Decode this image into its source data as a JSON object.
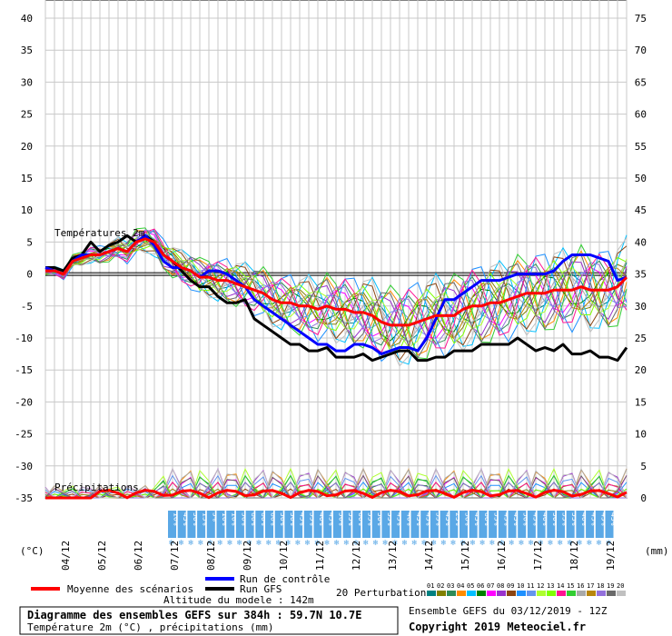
{
  "chart_data": {
    "type": "line",
    "title": "Diagramme des ensembles GEFS sur 384h : 59.7N 10.7E",
    "subtitle": "Température 2m (°C) , précipitations (mm)",
    "left_unit": "(°C)",
    "right_unit": "(mm)",
    "section_temp_label": "Températures 2m",
    "section_precip_label": "Précipitations",
    "left_ticks": [
      40,
      35,
      30,
      25,
      20,
      15,
      10,
      5,
      0,
      -5,
      -10,
      -15,
      -20,
      -25,
      -30,
      -35
    ],
    "right_ticks": [
      75,
      70,
      65,
      60,
      55,
      50,
      45,
      40,
      35,
      30,
      25,
      20,
      15,
      10,
      5,
      0
    ],
    "ylim": [
      -35,
      40
    ],
    "xlim": [
      0,
      64
    ],
    "dates": [
      "04/12",
      "05/12",
      "06/12",
      "07/12",
      "08/12",
      "09/12",
      "10/12",
      "11/12",
      "12/12",
      "13/12",
      "14/12",
      "15/12",
      "16/12",
      "17/12",
      "18/12",
      "19/12"
    ],
    "snow_percent": [
      "10%",
      "45%",
      "50%",
      "15%",
      "5%",
      "10%",
      "10%",
      "50%",
      "60%",
      "60%",
      "60%",
      "50%",
      "50%",
      "45%",
      "35%",
      "40%",
      "45%",
      "50%",
      "55%",
      "60%",
      "55%",
      "50%",
      "55%",
      "45%",
      "40%",
      "45%",
      "45%",
      "35%",
      "45%",
      "25%",
      "30%",
      "45%",
      "60%",
      "55%",
      "45%",
      "45%",
      "50%",
      "45%",
      "40%",
      "50%",
      "35%",
      "55%",
      "40%",
      "45%",
      "45%",
      "45%"
    ],
    "series": [
      {
        "name": "Moyenne des scénarios",
        "color": "#ff0000",
        "width": 3,
        "x": [
          0,
          1,
          2,
          3,
          4,
          5,
          6,
          7,
          8,
          9,
          10,
          11,
          12,
          13,
          14,
          15,
          16,
          17,
          18,
          19,
          20,
          21,
          22,
          23,
          24,
          25,
          26,
          27,
          28,
          29,
          30,
          31,
          32,
          33,
          34,
          35,
          36,
          37,
          38,
          39,
          40,
          41,
          42,
          43,
          44,
          45,
          46,
          47,
          48,
          49,
          50,
          51,
          52,
          53,
          54,
          55,
          56,
          57,
          58,
          59,
          60,
          61,
          62,
          63,
          64
        ],
        "y": [
          0.5,
          0.5,
          0,
          2,
          2.5,
          3,
          3,
          3.5,
          4,
          3.5,
          5,
          5.5,
          5,
          3,
          2,
          1,
          0.5,
          -0.5,
          -0.5,
          -1,
          -1,
          -1.5,
          -2,
          -2.5,
          -3,
          -4,
          -4.5,
          -4.5,
          -5,
          -5,
          -5.5,
          -5,
          -5.5,
          -5.5,
          -6,
          -6,
          -6.5,
          -7.5,
          -8,
          -8,
          -8,
          -7.5,
          -7,
          -6.5,
          -6.5,
          -6.5,
          -5.5,
          -5,
          -5,
          -4.5,
          -4.5,
          -4,
          -3.5,
          -3,
          -3,
          -3,
          -2.5,
          -2.5,
          -2.5,
          -2,
          -2.5,
          -2.5,
          -2.5,
          -2,
          -0.5
        ]
      },
      {
        "name": "Run de contrôle",
        "color": "#0000ff",
        "width": 3,
        "x": [
          0,
          1,
          2,
          3,
          4,
          5,
          6,
          7,
          8,
          9,
          10,
          11,
          12,
          13,
          14,
          15,
          16,
          17,
          18,
          19,
          20,
          21,
          22,
          23,
          24,
          25,
          26,
          27,
          28,
          29,
          30,
          31,
          32,
          33,
          34,
          35,
          36,
          37,
          38,
          39,
          40,
          41,
          42,
          43,
          44,
          45,
          46,
          47,
          48,
          49,
          50,
          51,
          52,
          53,
          54,
          55,
          56,
          57,
          58,
          59,
          60,
          61,
          62,
          63,
          64
        ],
        "y": [
          1,
          0.5,
          0,
          2,
          3,
          3,
          3,
          3.5,
          4,
          3.5,
          5,
          6,
          4.5,
          2,
          1,
          1,
          0.5,
          -0.5,
          0.5,
          0.5,
          0,
          -1,
          -2,
          -4,
          -5,
          -6,
          -7,
          -8,
          -9,
          -10,
          -11,
          -11,
          -12,
          -12,
          -11,
          -11,
          -11.5,
          -12.5,
          -12,
          -11.5,
          -11.5,
          -12,
          -10,
          -7,
          -4,
          -4,
          -3,
          -2,
          -1,
          -1,
          -1,
          -0.5,
          0,
          0,
          0,
          0,
          0.5,
          2,
          3,
          3,
          3,
          2.5,
          2,
          -1,
          -0.5
        ]
      },
      {
        "name": "Run GFS",
        "color": "#000000",
        "width": 3,
        "x": [
          0,
          1,
          2,
          3,
          4,
          5,
          6,
          7,
          8,
          9,
          10,
          11,
          12,
          13,
          14,
          15,
          16,
          17,
          18,
          19,
          20,
          21,
          22,
          23,
          24,
          25,
          26,
          27,
          28,
          29,
          30,
          31,
          32,
          33,
          34,
          35,
          36,
          37,
          38,
          39,
          40,
          41,
          42,
          43,
          44,
          45,
          46,
          47,
          48,
          49,
          50,
          51,
          52,
          53,
          54,
          55,
          56,
          57,
          58,
          59,
          60,
          61,
          62,
          63,
          64
        ],
        "y": [
          1,
          1,
          0.5,
          2.5,
          3,
          5,
          3.5,
          4.5,
          5,
          6,
          5,
          6,
          5,
          3,
          2,
          0.5,
          -1,
          -2,
          -2,
          -3.5,
          -4.5,
          -4.5,
          -4,
          -7,
          -8,
          -9,
          -10,
          -11,
          -11,
          -12,
          -12,
          -11.5,
          -13,
          -13,
          -13,
          -12.5,
          -13.5,
          -13,
          -12.5,
          -12,
          -12,
          -13.5,
          -13.5,
          -13,
          -13,
          -12,
          -12,
          -12,
          -11,
          -11,
          -11,
          -11,
          -10,
          -11,
          -12,
          -11.5,
          -12,
          -11,
          -12.5,
          -12.5,
          -12,
          -13,
          -13,
          -13.5,
          -11.5
        ]
      }
    ],
    "perturbation_labels": [
      "01",
      "02",
      "03",
      "04",
      "05",
      "06",
      "07",
      "08",
      "09",
      "10",
      "11",
      "12",
      "13",
      "14",
      "15",
      "16",
      "17",
      "18",
      "19",
      "20"
    ],
    "perturbation_colors": [
      "#008080",
      "#808000",
      "#2e8b57",
      "#ff8c00",
      "#00bfff",
      "#008000",
      "#ff00ff",
      "#9932cc",
      "#8b4513",
      "#1e90ff",
      "#6495ed",
      "#adff2f",
      "#7fff00",
      "#ff1493",
      "#32cd32",
      "#a9a9a9",
      "#b8860b",
      "#9370db",
      "#696969",
      "#c0c0c0"
    ]
  },
  "legend": {
    "mean": "Moyenne des scénarios",
    "control": "Run de contrôle",
    "gfs": "Run GFS",
    "perturbations": "20 Perturbations",
    "altitude": "Altitude du modele : 142m"
  },
  "footer": {
    "line1": "Diagramme des ensembles GEFS sur 384h : 59.7N 10.7E",
    "line2": "Température 2m (°C) , précipitations (mm)",
    "ensemble": "Ensemble GEFS du 03/12/2019 - 12Z",
    "copyright": "Copyright 2019 Meteociel.fr"
  }
}
